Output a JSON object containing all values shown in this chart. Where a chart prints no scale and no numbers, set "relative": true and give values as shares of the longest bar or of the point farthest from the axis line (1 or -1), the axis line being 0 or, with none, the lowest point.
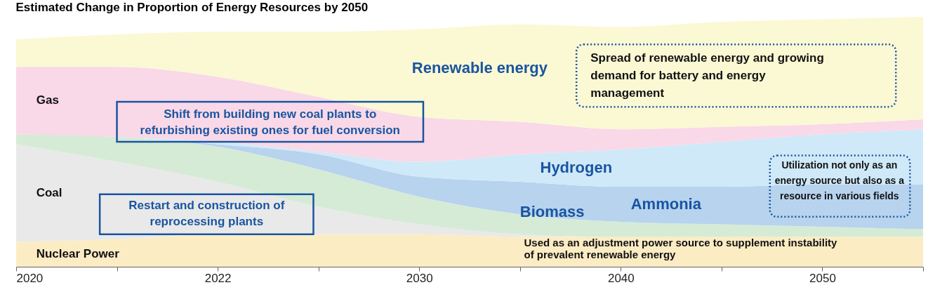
{
  "chart_data": {
    "type": "area",
    "title": "Estimated Change in Proportion of Energy Resources by 2050",
    "relative": true,
    "stacked": true,
    "grid": false,
    "legend": false,
    "categories": [
      "2020",
      null,
      "2022",
      null,
      "2030",
      null,
      "2040",
      null,
      "2050",
      null
    ],
    "series": [
      {
        "name": "Nuclear Power",
        "color": "#fcecc4",
        "values": [
          0.1,
          0.11,
          0.13,
          0.13,
          0.13,
          0.12,
          0.12,
          0.12,
          0.12,
          0.12
        ]
      },
      {
        "name": "Coal",
        "color": "#e9e9e9",
        "values": [
          0.39,
          0.31,
          0.21,
          0.11,
          0.04,
          0.01,
          0,
          0,
          0,
          0
        ]
      },
      {
        "name": "Biomass",
        "color": "#d5ebd6",
        "values": [
          0.04,
          0.1,
          0.14,
          0.15,
          0.11,
          0.08,
          0.06,
          0.05,
          0.04,
          0.03
        ]
      },
      {
        "name": "Ammonia",
        "color": "#b7d3ee",
        "values": [
          0,
          0,
          0.01,
          0.06,
          0.08,
          0.13,
          0.14,
          0.15,
          0.17,
          0.18
        ]
      },
      {
        "name": "Hydrogen",
        "color": "#cfe9f8",
        "values": [
          0,
          0,
          0.01,
          0.01,
          0.06,
          0.11,
          0.15,
          0.18,
          0.2,
          0.22
        ]
      },
      {
        "name": "Gas",
        "color": "#f9d8e8",
        "values": [
          0.27,
          0.28,
          0.26,
          0.22,
          0.18,
          0.13,
          0.08,
          0.06,
          0.04,
          0.04
        ]
      },
      {
        "name": "Renewable energy",
        "color": "#fbf8d4",
        "values": [
          0.11,
          0.13,
          0.18,
          0.26,
          0.35,
          0.39,
          0.41,
          0.42,
          0.42,
          0.41
        ]
      }
    ],
    "annotations": [
      "Shift from building new coal plants to refurbishing existing ones for fuel conversion",
      "Restart and construction of reprocessing plants",
      "Spread of renewable energy and growing demand for battery and energy management",
      "Utilization not only as an energy source but also as a resource in various fields",
      "Used as an adjustment power source to supplement instability of prevalent renewable energy"
    ]
  }
}
